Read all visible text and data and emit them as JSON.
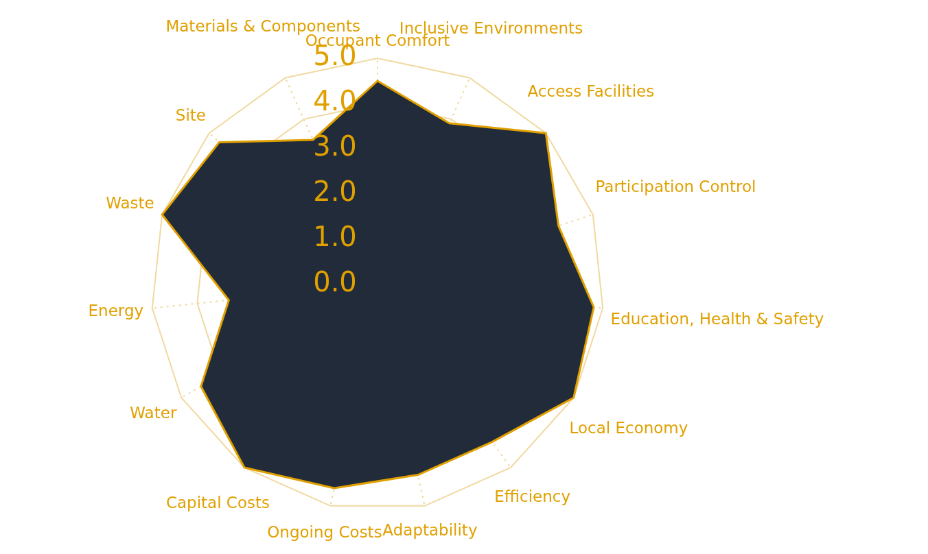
{
  "chart_data": {
    "type": "radar",
    "categories": [
      "Occupant Comfort",
      "Inclusive Environments",
      "Access Facilities",
      "Participation Control",
      "Education, Health & Safety",
      "Local Economy",
      "Efficiency",
      "Adaptability",
      "Ongoing Costs",
      "Capital Costs",
      "Water",
      "Energy",
      "Waste",
      "Site",
      "Materials & Components"
    ],
    "series": [
      {
        "color": "#222b3a",
        "values": [
          4.5,
          3.9,
          5.0,
          4.2,
          4.8,
          5.0,
          4.3,
          4.3,
          4.6,
          5.0,
          4.5,
          3.3,
          5.0,
          4.7,
          3.5
        ]
      }
    ],
    "ylim": [
      0,
      5
    ],
    "yticks": [
      {
        "value": 0,
        "label": "0.0"
      },
      {
        "value": 1,
        "label": "1.0"
      },
      {
        "value": 2,
        "label": "2.0"
      },
      {
        "value": 3,
        "label": "3.0"
      },
      {
        "value": 4,
        "label": "4.0"
      },
      {
        "value": 5,
        "label": "5.0"
      }
    ],
    "grid": true,
    "legend": false
  }
}
